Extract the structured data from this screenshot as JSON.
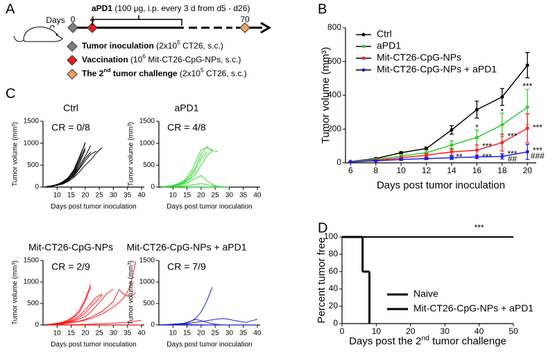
{
  "panel_labels": [
    "A",
    "B",
    "C",
    "D"
  ],
  "schematic": {
    "days_label": "Days",
    "marker_days": [
      0,
      4,
      70
    ],
    "treatment": {
      "drug": "aPD1",
      "detail": " (100 µg, i.p. every 3 d from d5 - d26)"
    },
    "legend": [
      {
        "label": [
          "Tumor inoculation"
        ],
        "detail": [
          " (2x10",
          "5",
          " CT26, s.c.)"
        ],
        "color": "#7f7f7f"
      },
      {
        "label": [
          "Vaccination"
        ],
        "detail": [
          " (10",
          "6",
          " Mit-CT26-CpG-NPs, s.c.)"
        ],
        "color": "#e3211c"
      },
      {
        "label": [
          "The 2",
          "nd",
          " tumor challenge"
        ],
        "detail": [
          " (2x10",
          "5",
          " CT26, s.c.)"
        ],
        "color": "#f0a060"
      }
    ]
  },
  "chart_data": [
    {
      "type": "line",
      "legend": "upper left",
      "xlabel": "Days post tumor inoculation",
      "ylabel": "Tumor volume (mm³)",
      "x": [
        6,
        8,
        10,
        12,
        14,
        16,
        18,
        20
      ],
      "xlim": [
        5.6,
        20.7
      ],
      "xticks": [
        6,
        8,
        10,
        12,
        14,
        16,
        18,
        20
      ],
      "ylim": [
        0,
        800
      ],
      "yticks": [
        0,
        200,
        400,
        600,
        800
      ],
      "series": [
        {
          "name": "Ctrl",
          "color": "#000000",
          "values": [
            8,
            25,
            60,
            85,
            195,
            315,
            390,
            578
          ],
          "errors": [
            2,
            5,
            5,
            8,
            25,
            50,
            50,
            75
          ]
        },
        {
          "name": "aPD1",
          "color": "#33cc33",
          "values": [
            7,
            20,
            40,
            60,
            105,
            150,
            225,
            330
          ],
          "errors": [
            2,
            5,
            10,
            15,
            25,
            45,
            70,
            105
          ]
        },
        {
          "name": "Mit-CT26-CpG-NPs",
          "color": "#ff2020",
          "values": [
            5,
            15,
            30,
            45,
            65,
            75,
            120,
            205
          ],
          "errors": [
            2,
            5,
            8,
            10,
            20,
            30,
            50,
            85
          ]
        },
        {
          "name": "Mit-CT26-CpG-NPs + aPD1",
          "color": "#1f1fdd",
          "values": [
            5,
            12,
            20,
            25,
            30,
            35,
            38,
            65
          ],
          "errors": [
            2,
            3,
            5,
            5,
            10,
            10,
            15,
            45
          ]
        }
      ],
      "annotations": [
        {
          "text": "**",
          "x": 14.6,
          "y": 32
        },
        {
          "text": "*",
          "x": 16,
          "y": 205
        },
        {
          "text": "***",
          "x": 16.8,
          "y": 95
        },
        {
          "text": "***",
          "x": 16.8,
          "y": 32
        },
        {
          "text": "*",
          "x": 18,
          "y": 300
        },
        {
          "text": "***",
          "x": 18.8,
          "y": 155
        },
        {
          "text": "***",
          "x": 18.8,
          "y": 50
        },
        {
          "text": "##",
          "x": 18.8,
          "y": 20
        },
        {
          "text": "***",
          "x": 20,
          "y": 450
        },
        {
          "text": "***",
          "x": 20.8,
          "y": 205
        },
        {
          "text": "***",
          "x": 20.8,
          "y": 70
        },
        {
          "text": "###",
          "x": 20.8,
          "y": 38
        }
      ]
    },
    {
      "type": "line",
      "title": "Ctrl",
      "subtitle": "CR = 0/8",
      "color": "#000000",
      "xlabel": "Days post tumor inoculation",
      "ylabel": "Tumor volume (mm³)",
      "x": [
        6,
        8,
        10,
        12,
        14,
        16,
        18,
        20,
        22,
        24,
        26
      ],
      "xlim": [
        5,
        41
      ],
      "xticks": [
        10,
        15,
        20,
        25,
        30,
        35,
        40
      ],
      "ylim": [
        0,
        1500
      ],
      "yticks": [
        0,
        500,
        1000,
        1500
      ],
      "series": [
        {
          "values": [
            10,
            30,
            60,
            120,
            220,
            400,
            700,
            1000,
            null,
            null,
            null
          ]
        },
        {
          "values": [
            10,
            25,
            50,
            100,
            200,
            350,
            600,
            900,
            null,
            null,
            null
          ]
        },
        {
          "values": [
            10,
            25,
            50,
            90,
            180,
            300,
            500,
            700,
            950,
            null,
            null
          ]
        },
        {
          "values": [
            10,
            20,
            40,
            80,
            150,
            280,
            450,
            650,
            800,
            null,
            null
          ]
        },
        {
          "values": [
            10,
            30,
            55,
            110,
            200,
            380,
            650,
            1020,
            null,
            null,
            null
          ]
        },
        {
          "values": [
            10,
            20,
            45,
            85,
            160,
            250,
            420,
            600,
            750,
            820,
            null
          ]
        },
        {
          "values": [
            10,
            20,
            40,
            70,
            130,
            220,
            350,
            500,
            620,
            780,
            900
          ]
        },
        {
          "values": [
            10,
            25,
            45,
            90,
            170,
            320,
            550,
            850,
            null,
            null,
            null
          ]
        }
      ]
    },
    {
      "type": "line",
      "title": "aPD1",
      "subtitle": "CR = 4/8",
      "color": "#33dd33",
      "xlabel": "Days post tumor inoculation",
      "ylabel": "Tumor volume (mm³)",
      "x": [
        6,
        8,
        10,
        12,
        14,
        16,
        18,
        20,
        22,
        24,
        26,
        28,
        30
      ],
      "xlim": [
        5,
        41
      ],
      "xticks": [
        10,
        15,
        20,
        25,
        30,
        35,
        40
      ],
      "ylim": [
        0,
        1500
      ],
      "yticks": [
        0,
        500,
        1000,
        1500
      ],
      "series": [
        {
          "values": [
            10,
            20,
            40,
            80,
            150,
            300,
            550,
            850,
            900,
            850,
            null,
            null,
            null
          ]
        },
        {
          "values": [
            10,
            20,
            40,
            70,
            130,
            250,
            450,
            750,
            920,
            820,
            null,
            null,
            null
          ]
        },
        {
          "values": [
            10,
            15,
            30,
            60,
            110,
            200,
            400,
            650,
            800,
            null,
            null,
            null,
            null
          ]
        },
        {
          "values": [
            10,
            20,
            30,
            50,
            90,
            170,
            300,
            500,
            700,
            830,
            810,
            null,
            null
          ]
        },
        {
          "values": [
            10,
            15,
            25,
            40,
            70,
            120,
            200,
            260,
            150,
            60,
            20,
            5,
            0
          ]
        },
        {
          "values": [
            5,
            10,
            15,
            20,
            30,
            40,
            60,
            80,
            60,
            30,
            10,
            0,
            0
          ]
        },
        {
          "values": [
            5,
            5,
            5,
            5,
            5,
            0,
            0,
            0,
            0,
            0,
            0,
            0,
            0
          ]
        },
        {
          "values": [
            5,
            5,
            10,
            10,
            10,
            5,
            0,
            0,
            0,
            0,
            0,
            0,
            0
          ]
        }
      ]
    },
    {
      "type": "line",
      "title": "Mit-CT26-CpG-NPs",
      "subtitle": "CR = 2/9",
      "color": "#ff1a1a",
      "xlabel": "Days post tumor inoculation",
      "ylabel": "Tumor volume (mm³)",
      "x": [
        6,
        8,
        10,
        12,
        14,
        16,
        18,
        20,
        22,
        24,
        26,
        28,
        30,
        32,
        34,
        36,
        38,
        40
      ],
      "xlim": [
        5,
        41
      ],
      "xticks": [
        10,
        15,
        20,
        25,
        30,
        35,
        40
      ],
      "ylim": [
        0,
        1500
      ],
      "yticks": [
        0,
        500,
        1000,
        1500
      ],
      "series": [
        {
          "values": [
            10,
            20,
            40,
            70,
            120,
            200,
            350,
            600,
            950,
            null,
            null,
            null,
            null,
            null,
            null,
            null,
            null,
            null
          ]
        },
        {
          "values": [
            10,
            20,
            40,
            60,
            100,
            180,
            300,
            550,
            880,
            null,
            null,
            null,
            null,
            null,
            null,
            null,
            null,
            null
          ]
        },
        {
          "values": [
            10,
            15,
            30,
            50,
            80,
            140,
            220,
            350,
            500,
            650,
            720,
            null,
            null,
            null,
            null,
            null,
            null,
            null
          ]
        },
        {
          "values": [
            10,
            15,
            25,
            40,
            70,
            110,
            180,
            280,
            420,
            550,
            700,
            null,
            null,
            null,
            null,
            null,
            null,
            null
          ]
        },
        {
          "values": [
            10,
            15,
            25,
            40,
            60,
            90,
            140,
            200,
            300,
            450,
            600,
            750,
            830,
            null,
            null,
            null,
            null,
            null
          ]
        },
        {
          "values": [
            10,
            10,
            15,
            25,
            40,
            60,
            80,
            110,
            150,
            200,
            260,
            330,
            420,
            520,
            650,
            900,
            1480,
            null
          ]
        },
        {
          "values": [
            10,
            10,
            20,
            30,
            45,
            65,
            90,
            130,
            180,
            240,
            320,
            420,
            550,
            820,
            700,
            650,
            750,
            null
          ]
        },
        {
          "values": [
            5,
            5,
            5,
            5,
            5,
            10,
            10,
            15,
            20,
            25,
            30,
            35,
            40,
            50,
            60,
            70,
            90,
            110
          ]
        },
        {
          "values": [
            5,
            5,
            5,
            5,
            0,
            0,
            0,
            0,
            0,
            0,
            0,
            0,
            0,
            0,
            0,
            0,
            0,
            0
          ]
        }
      ]
    },
    {
      "type": "line",
      "title": "Mit-CT26-CpG-NPs + aPD1",
      "subtitle": "CR = 7/9",
      "color": "#1f1fdd",
      "xlabel": "Days post tumor inoculation",
      "ylabel": "Tumor volume (mm³)",
      "x": [
        6,
        8,
        10,
        12,
        14,
        16,
        18,
        20,
        22,
        24,
        26,
        28,
        30,
        32,
        34,
        36,
        38,
        40
      ],
      "xlim": [
        5,
        41
      ],
      "xticks": [
        10,
        15,
        20,
        25,
        30,
        35,
        40
      ],
      "ylim": [
        0,
        1500
      ],
      "yticks": [
        0,
        500,
        1000,
        1500
      ],
      "series": [
        {
          "values": [
            5,
            10,
            15,
            25,
            40,
            70,
            150,
            300,
            550,
            880,
            null,
            null,
            null,
            null,
            null,
            null,
            null,
            null
          ]
        },
        {
          "values": [
            5,
            10,
            15,
            20,
            30,
            40,
            60,
            80,
            100,
            120,
            140,
            150,
            130,
            100,
            80,
            60,
            100,
            130
          ]
        },
        {
          "values": [
            5,
            10,
            15,
            20,
            40,
            80,
            130,
            100,
            60,
            30,
            10,
            0,
            0,
            0,
            0,
            0,
            0,
            0
          ]
        },
        {
          "values": [
            5,
            5,
            10,
            10,
            5,
            5,
            0,
            0,
            0,
            0,
            0,
            0,
            0,
            0,
            0,
            0,
            0,
            0
          ]
        },
        {
          "values": [
            5,
            10,
            10,
            15,
            10,
            5,
            5,
            0,
            0,
            0,
            0,
            0,
            0,
            0,
            0,
            0,
            null,
            null
          ]
        },
        {
          "values": [
            5,
            5,
            5,
            10,
            10,
            10,
            5,
            5,
            0,
            0,
            0,
            0,
            0,
            0,
            null,
            null,
            null,
            null
          ]
        },
        {
          "values": [
            5,
            5,
            5,
            5,
            5,
            0,
            0,
            0,
            0,
            0,
            0,
            0,
            null,
            null,
            null,
            null,
            null,
            null
          ]
        },
        {
          "values": [
            5,
            10,
            20,
            30,
            20,
            10,
            5,
            0,
            0,
            0,
            0,
            0,
            0,
            0,
            0,
            0,
            0,
            0
          ]
        },
        {
          "values": [
            5,
            5,
            5,
            5,
            0,
            0,
            0,
            0,
            0,
            0,
            null,
            null,
            null,
            null,
            null,
            null,
            null,
            null
          ]
        }
      ]
    },
    {
      "type": "step",
      "legend": "lower right",
      "xlabel": [
        "Days post the 2",
        "nd",
        " tumor challenge"
      ],
      "ylabel": "Percent tumor free",
      "xlim": [
        0,
        50
      ],
      "xticks": [
        0,
        10,
        20,
        30,
        40,
        50
      ],
      "ylim": [
        0,
        100
      ],
      "yticks": [
        0,
        20,
        40,
        60,
        80,
        100
      ],
      "series": [
        {
          "name": "Naive",
          "color": "#000000",
          "x": [
            0,
            6,
            8
          ],
          "values": [
            100,
            60,
            0
          ]
        },
        {
          "name": "Mit-CT26-CpG-NPs + aPD1",
          "color": "#1f1fdd",
          "x": [
            0,
            50
          ],
          "values": [
            100,
            100
          ]
        }
      ],
      "annotations": [
        {
          "text": "***",
          "x": 40,
          "y": 110
        }
      ]
    }
  ]
}
